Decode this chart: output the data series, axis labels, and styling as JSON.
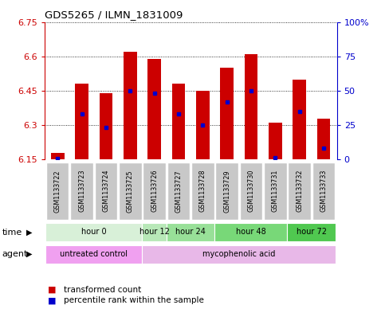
{
  "title": "GDS5265 / ILMN_1831009",
  "samples": [
    "GSM1133722",
    "GSM1133723",
    "GSM1133724",
    "GSM1133725",
    "GSM1133726",
    "GSM1133727",
    "GSM1133728",
    "GSM1133729",
    "GSM1133730",
    "GSM1133731",
    "GSM1133732",
    "GSM1133733"
  ],
  "bar_tops": [
    6.18,
    6.48,
    6.44,
    6.62,
    6.59,
    6.48,
    6.45,
    6.55,
    6.61,
    6.31,
    6.5,
    6.33
  ],
  "bar_base": 6.15,
  "blue_dot_values": [
    6.155,
    6.35,
    6.29,
    6.45,
    6.44,
    6.35,
    6.3,
    6.4,
    6.45,
    6.16,
    6.36,
    6.2
  ],
  "ylim_left": [
    6.15,
    6.75
  ],
  "ylim_right": [
    0,
    100
  ],
  "yticks_left": [
    6.15,
    6.3,
    6.45,
    6.6,
    6.75
  ],
  "yticks_right": [
    0,
    25,
    50,
    75,
    100
  ],
  "bar_color": "#cc0000",
  "dot_color": "#0000cc",
  "time_groups": [
    {
      "label": "hour 0",
      "start": 0,
      "end": 3,
      "color": "#d8f0d8"
    },
    {
      "label": "hour 12",
      "start": 4,
      "end": 4,
      "color": "#b8e8b8"
    },
    {
      "label": "hour 24",
      "start": 5,
      "end": 6,
      "color": "#98e098"
    },
    {
      "label": "hour 48",
      "start": 7,
      "end": 9,
      "color": "#78d878"
    },
    {
      "label": "hour 72",
      "start": 10,
      "end": 11,
      "color": "#50c850"
    }
  ],
  "agent_groups": [
    {
      "label": "untreated control",
      "start": 0,
      "end": 3,
      "color": "#f0a0f0"
    },
    {
      "label": "mycophenolic acid",
      "start": 4,
      "end": 11,
      "color": "#e8b8e8"
    }
  ],
  "legend_items": [
    {
      "label": "transformed count",
      "color": "#cc0000"
    },
    {
      "label": "percentile rank within the sample",
      "color": "#0000cc"
    }
  ],
  "left_tick_color": "#cc0000",
  "right_tick_color": "#0000cc",
  "sample_box_color": "#c8c8c8",
  "sample_box_edge": "#ffffff"
}
